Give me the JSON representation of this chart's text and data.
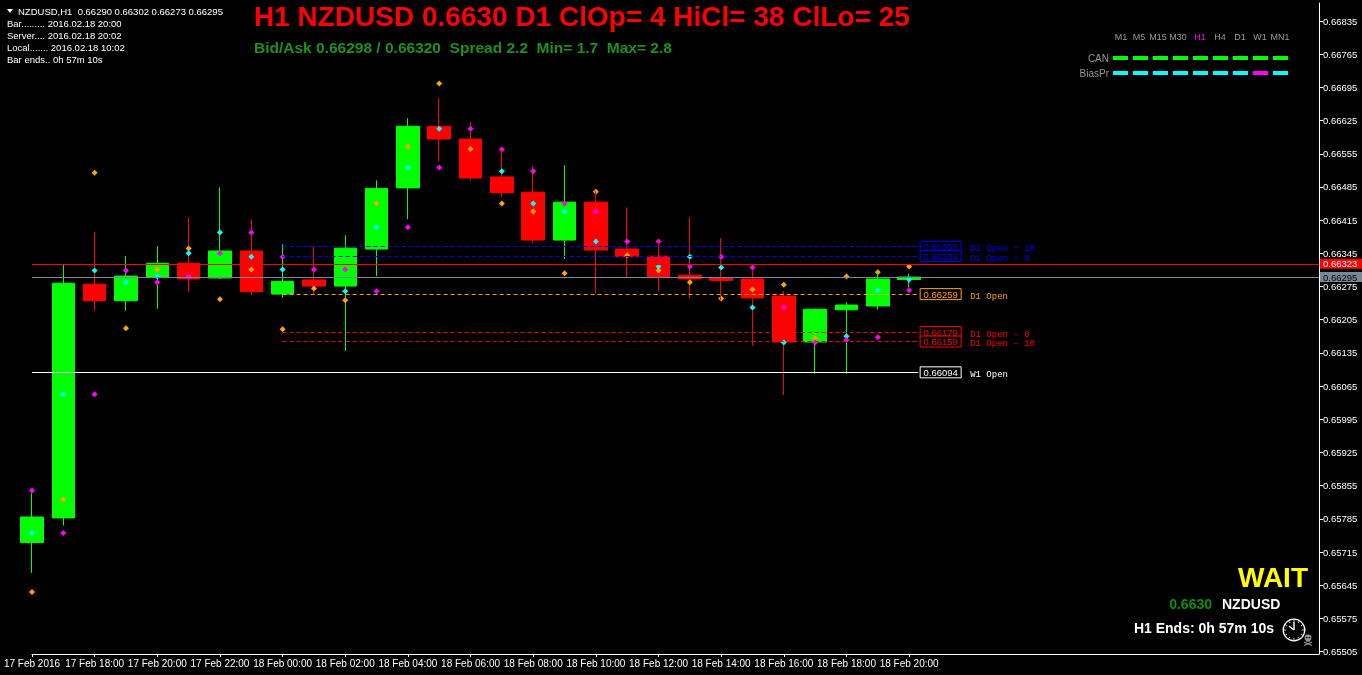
{
  "chart_data": {
    "type": "candlestick",
    "title": "H1 NZDUSD 0.6630 D1 ClOp= 4 HiCl= 38 ClLo= 25",
    "subtitle": "Bid/Ask 0.66298 / 0.66320  Spread 2.2  Min= 1.7  Max= 2.8",
    "x": [
      "2016-02-17T16:00",
      "2016-02-17T17:00",
      "2016-02-17T18:00",
      "2016-02-17T19:00",
      "2016-02-17T20:00",
      "2016-02-17T21:00",
      "2016-02-17T22:00",
      "2016-02-17T23:00",
      "2016-02-18T00:00",
      "2016-02-18T01:00",
      "2016-02-18T02:00",
      "2016-02-18T03:00",
      "2016-02-18T04:00",
      "2016-02-18T05:00",
      "2016-02-18T06:00",
      "2016-02-18T07:00",
      "2016-02-18T08:00",
      "2016-02-18T09:00",
      "2016-02-18T10:00",
      "2016-02-18T11:00",
      "2016-02-18T12:00",
      "2016-02-18T13:00",
      "2016-02-18T14:00",
      "2016-02-18T15:00",
      "2016-02-18T16:00",
      "2016-02-18T17:00",
      "2016-02-18T18:00",
      "2016-02-18T19:00",
      "2016-02-18T20:00"
    ],
    "ohlc": [
      [
        0.65735,
        0.65839,
        0.65671,
        0.65789
      ],
      [
        0.65787,
        0.66322,
        0.65771,
        0.66282
      ],
      [
        0.6628,
        0.6639,
        0.66224,
        0.66245
      ],
      [
        0.66245,
        0.66339,
        0.66224,
        0.66297
      ],
      [
        0.66295,
        0.6636,
        0.66228,
        0.66324
      ],
      [
        0.66324,
        0.66421,
        0.66264,
        0.66291
      ],
      [
        0.66293,
        0.66484,
        0.66291,
        0.6635
      ],
      [
        0.6635,
        0.66417,
        0.66257,
        0.66264
      ],
      [
        0.66259,
        0.66364,
        0.66251,
        0.66286
      ],
      [
        0.66289,
        0.6636,
        0.6626,
        0.66276
      ],
      [
        0.66276,
        0.66383,
        0.66139,
        0.66356
      ],
      [
        0.66354,
        0.66499,
        0.66297,
        0.66482
      ],
      [
        0.66483,
        0.6663,
        0.66417,
        0.66613
      ],
      [
        0.66613,
        0.66672,
        0.66539,
        0.66586
      ],
      [
        0.66586,
        0.66622,
        0.66499,
        0.66504
      ],
      [
        0.66506,
        0.66564,
        0.66464,
        0.66473
      ],
      [
        0.66474,
        0.66529,
        0.66367,
        0.66373
      ],
      [
        0.66373,
        0.66531,
        0.66333,
        0.66453
      ],
      [
        0.66453,
        0.66476,
        0.6626,
        0.66352
      ],
      [
        0.66354,
        0.66442,
        0.66293,
        0.66338
      ],
      [
        0.66339,
        0.66372,
        0.66265,
        0.66295
      ],
      [
        0.66299,
        0.66421,
        0.66251,
        0.66291
      ],
      [
        0.66293,
        0.66377,
        0.66246,
        0.66288
      ],
      [
        0.66291,
        0.6631,
        0.6615,
        0.66251
      ],
      [
        0.66255,
        0.66265,
        0.66046,
        0.66158
      ],
      [
        0.66158,
        0.66229,
        0.66091,
        0.66227
      ],
      [
        0.66226,
        0.66242,
        0.66091,
        0.66236
      ],
      [
        0.66234,
        0.66305,
        0.66226,
        0.66291
      ],
      [
        0.6629,
        0.66302,
        0.66273,
        0.66295
      ]
    ],
    "colors": [
      "#00ff00",
      "#00ff00",
      "#ff0000",
      "#00ff00",
      "#00ff00",
      "#ff0000",
      "#00ff00",
      "#ff0000",
      "#00ff00",
      "#ff0000",
      "#00ff00",
      "#00ff00",
      "#00ff00",
      "#ff0000",
      "#ff0000",
      "#ff0000",
      "#ff0000",
      "#00ff00",
      "#ff0000",
      "#ff0000",
      "#ff0000",
      "#ff0000",
      "#ff0000",
      "#ff0000",
      "#ff0000",
      "#00ff00",
      "#00ff00",
      "#00ff00",
      "#00ff00"
    ],
    "series": [
      {
        "type": "scatter",
        "color": "#ffa500",
        "values": [
          0.65631,
          0.65826,
          0.66515,
          0.66187,
          0.66311,
          0.66355,
          0.66248,
          0.66311,
          0.66185,
          0.66271,
          0.66246,
          0.6645,
          0.6657,
          0.66703,
          0.66565,
          0.6645,
          0.66433,
          0.66303,
          0.66475,
          0.66341,
          0.66309,
          0.66284,
          0.6625,
          0.66269,
          0.66279,
          0.66166,
          0.66296,
          0.66305,
          0.66317
        ]
      },
      {
        "type": "scatter",
        "color": "#00ffff",
        "values": [
          0.65755,
          0.66048,
          0.66309,
          0.66284,
          0.66296,
          0.66345,
          0.66389,
          0.66338,
          0.66311,
          null,
          0.66265,
          0.664,
          0.66526,
          0.66608,
          null,
          0.66518,
          0.6645,
          0.66433,
          0.6637,
          null,
          0.66317,
          0.66338,
          0.66315,
          0.66231,
          0.66157,
          null,
          0.6617,
          0.66267,
          0.6629
        ]
      },
      {
        "type": "scatter",
        "color": "#ff00ff",
        "values": [
          0.65845,
          0.65755,
          0.66048,
          0.66309,
          0.66284,
          0.66296,
          0.66345,
          0.66389,
          0.66338,
          0.66311,
          0.66311,
          0.66265,
          0.664,
          0.66526,
          0.66608,
          0.66564,
          0.66518,
          0.6645,
          0.66433,
          0.6637,
          0.6637,
          0.66317,
          0.66338,
          0.66315,
          0.66231,
          0.66157,
          0.66162,
          0.66168,
          0.66267
        ]
      }
    ],
    "marker": "diamond",
    "xlim": [
      "2016-02-17T16:00",
      "2016-02-19T09:05"
    ],
    "xticks": [
      {
        "value": "2016-02-17T16:00",
        "label": "17 Feb 2016"
      },
      {
        "value": "2016-02-17T18:00",
        "label": "17 Feb 18:00"
      },
      {
        "value": "2016-02-17T20:00",
        "label": "17 Feb 20:00"
      },
      {
        "value": "2016-02-17T22:00",
        "label": "17 Feb 22:00"
      },
      {
        "value": "2016-02-18T00:00",
        "label": "18 Feb 00:00"
      },
      {
        "value": "2016-02-18T02:00",
        "label": "18 Feb 02:00"
      },
      {
        "value": "2016-02-18T04:00",
        "label": "18 Feb 04:00"
      },
      {
        "value": "2016-02-18T06:00",
        "label": "18 Feb 06:00"
      },
      {
        "value": "2016-02-18T08:00",
        "label": "18 Feb 08:00"
      },
      {
        "value": "2016-02-18T10:00",
        "label": "18 Feb 10:00"
      },
      {
        "value": "2016-02-18T12:00",
        "label": "18 Feb 12:00"
      },
      {
        "value": "2016-02-18T14:00",
        "label": "18 Feb 14:00"
      },
      {
        "value": "2016-02-18T16:00",
        "label": "18 Feb 16:00"
      },
      {
        "value": "2016-02-18T18:00",
        "label": "18 Feb 18:00"
      },
      {
        "value": "2016-02-18T20:00",
        "label": "18 Feb 20:00"
      }
    ],
    "ylim": [
      0.655,
      0.66873
    ],
    "yticks": [
      0.65505,
      0.65575,
      0.65645,
      0.65715,
      0.65785,
      0.65855,
      0.65925,
      0.65995,
      0.66065,
      0.66135,
      0.66205,
      0.66275,
      0.66345,
      0.66415,
      0.66485,
      0.66555,
      0.66625,
      0.66695,
      0.66765,
      0.66835
    ],
    "grid": false,
    "ref_lines": [
      {
        "axis": "y",
        "value": 0.66323,
        "color": "#ff0000",
        "line_style": "solid"
      },
      {
        "axis": "y",
        "value": 0.66295,
        "color": "#778899",
        "line_style": "solid"
      },
      {
        "axis": "y",
        "value": 0.66359,
        "label": "D1 Open + 10",
        "color": "#0000ff",
        "line_style": "dashed"
      },
      {
        "axis": "y",
        "value": 0.66339,
        "label": "D1 Open + 8",
        "color": "#0000ff",
        "line_style": "dashed"
      },
      {
        "axis": "y",
        "value": 0.66259,
        "label": "D1 Open",
        "color": "#ffa500",
        "line_style": "dashed"
      },
      {
        "axis": "y",
        "value": 0.66179,
        "label": "D1 Open - 8",
        "color": "#ff0000",
        "line_style": "dashed"
      },
      {
        "axis": "y",
        "value": 0.66159,
        "label": "D1 Open - 10",
        "color": "#ff0000",
        "line_style": "dashed"
      },
      {
        "axis": "y",
        "value": 0.66094,
        "label": "W1 Open",
        "color": "#ffffff",
        "line_style": "solid"
      }
    ],
    "annotations": [
      "NZDUSD,H1  0.66290 0.66302 0.66273 0.66295",
      "Bar......... 2016.02.18 20:00",
      "Server.... 2016.02.18 20:02",
      "Local....... 2016.02.18 10:02",
      "Bar ends.. 0h 57m 10s",
      "M1",
      "M5",
      "M15",
      "M30",
      "H1",
      "H4",
      "D1",
      "W1",
      "MN1",
      "CAN",
      "BiasPr",
      "WAIT",
      "0.6630",
      "NZDUSD",
      "H1 Ends: 0h 57m 10s",
      "0.66323",
      "0.66295",
      "0.66359",
      "0.66339",
      "0.66259",
      "0.66179",
      "0.66159",
      "0.66094"
    ]
  }
}
